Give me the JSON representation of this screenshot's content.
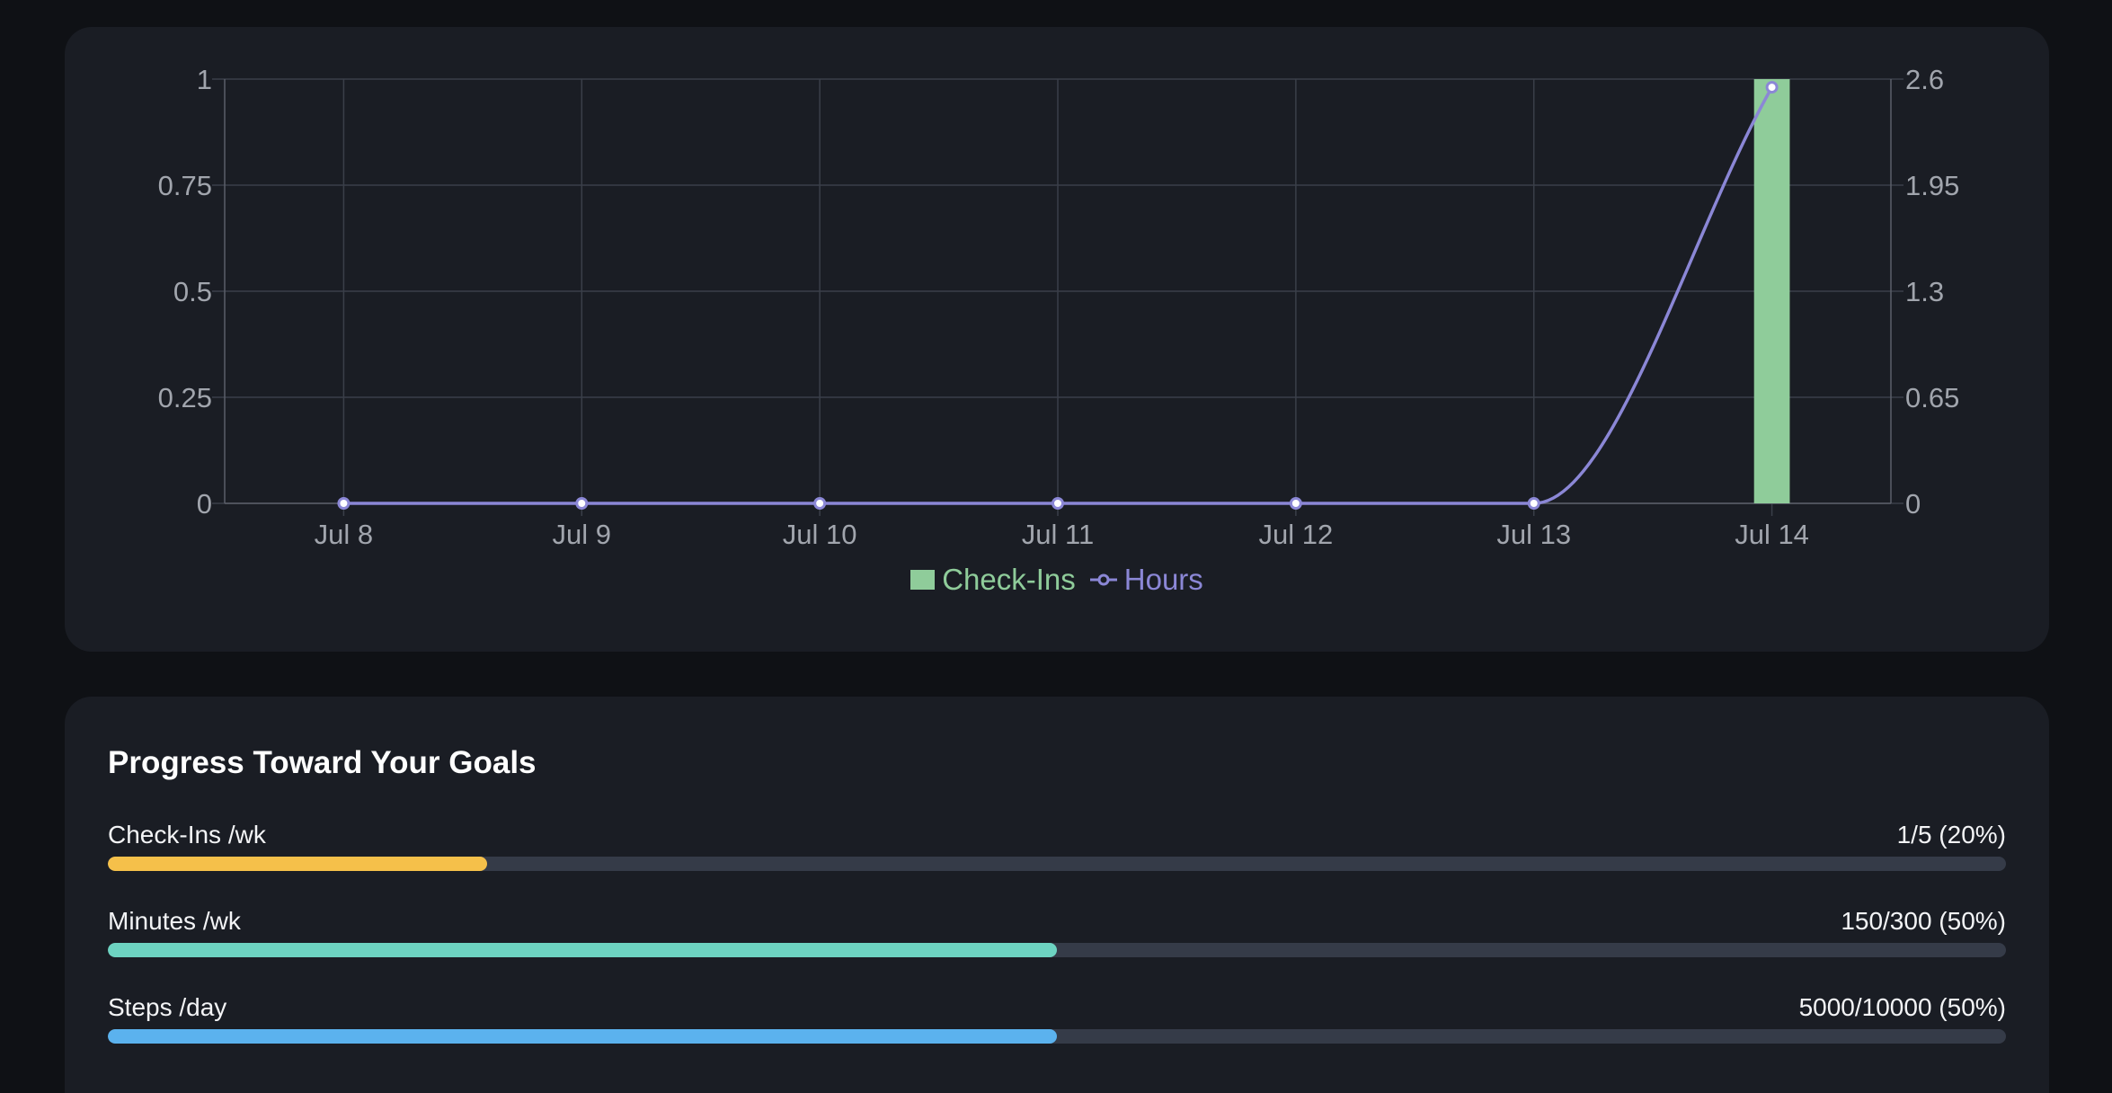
{
  "chart_data": {
    "type": "bar",
    "categories": [
      "Jul 8",
      "Jul 9",
      "Jul 10",
      "Jul 11",
      "Jul 12",
      "Jul 13",
      "Jul 14"
    ],
    "series": [
      {
        "name": "Check-Ins",
        "type": "bar",
        "axis": "left",
        "color": "#8fcc9a",
        "values": [
          0,
          0,
          0,
          0,
          0,
          0,
          1
        ]
      },
      {
        "name": "Hours",
        "type": "line",
        "axis": "right",
        "color": "#8b87d6",
        "values": [
          0,
          0,
          0,
          0,
          0,
          0,
          2.55
        ]
      }
    ],
    "y_left": {
      "ticks": [
        "1",
        "0.75",
        "0.5",
        "0.25",
        "0"
      ],
      "ylim": [
        0,
        1
      ]
    },
    "y_right": {
      "ticks": [
        "2.6",
        "1.95",
        "1.3",
        "0.65",
        "0"
      ],
      "ylim": [
        0,
        2.6
      ]
    },
    "grid": true,
    "legend": "bottom-center"
  },
  "goals": {
    "title": "Progress Toward Your Goals",
    "items": [
      {
        "label": "Check-Ins /wk",
        "value": "1/5 (20%)",
        "fraction": 0.2,
        "color": "#f5c04a"
      },
      {
        "label": "Minutes /wk",
        "value": "150/300 (50%)",
        "fraction": 0.5,
        "color": "#6dd3c1"
      },
      {
        "label": "Steps /day",
        "value": "5000/10000 (50%)",
        "fraction": 0.5,
        "color": "#5bb2ee"
      }
    ]
  }
}
